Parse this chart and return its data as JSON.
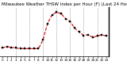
{
  "title": "Milwaukee Weather THSW Index per Hour (F) (Last 24 Hours)",
  "hours": [
    0,
    1,
    2,
    3,
    4,
    5,
    6,
    7,
    8,
    9,
    10,
    11,
    12,
    13,
    14,
    15,
    16,
    17,
    18,
    19,
    20,
    21,
    22,
    23
  ],
  "values": [
    28,
    30,
    29,
    28,
    27,
    27,
    27,
    27,
    27,
    40,
    65,
    78,
    82,
    80,
    72,
    68,
    58,
    52,
    47,
    48,
    44,
    46,
    48,
    46
  ],
  "line_color": "#cc0000",
  "marker_color": "#000000",
  "background_color": "#ffffff",
  "grid_color": "#999999",
  "title_color": "#000000",
  "ylim": [
    15,
    90
  ],
  "xlim": [
    -0.5,
    23.5
  ],
  "yticks": [
    20,
    30,
    40,
    50,
    60,
    70,
    80
  ],
  "ytick_labels": [
    "20",
    "30",
    "40",
    "50",
    "60",
    "70",
    "80"
  ],
  "xticks": [
    0,
    1,
    2,
    3,
    4,
    5,
    6,
    7,
    8,
    9,
    10,
    11,
    12,
    13,
    14,
    15,
    16,
    17,
    18,
    19,
    20,
    21,
    22,
    23
  ],
  "vgrid_hours": [
    3,
    6,
    9,
    12,
    15,
    18,
    21
  ],
  "title_fontsize": 4.0,
  "tick_fontsize": 3.0,
  "line_width": 0.8,
  "marker_size": 1.8
}
